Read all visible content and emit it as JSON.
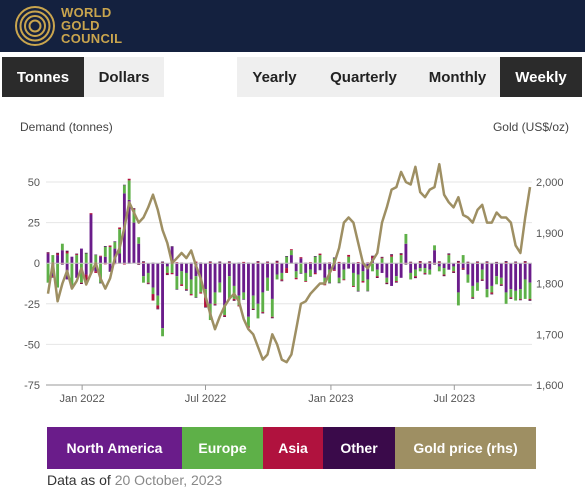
{
  "brand": {
    "line1": "WORLD",
    "line2": "GOLD",
    "line3": "COUNCIL",
    "logo_color": "#c9a54e",
    "header_bg": "#14213f"
  },
  "units_toggle": {
    "tonnes": "Tonnes",
    "dollars": "Dollars",
    "selected": "Tonnes"
  },
  "period_toggle": {
    "yearly": "Yearly",
    "quarterly": "Quarterly",
    "monthly": "Monthly",
    "weekly": "Weekly",
    "selected": "Weekly"
  },
  "axes": {
    "left_title": "Demand (tonnes)",
    "right_title": "Gold (US$/oz)"
  },
  "legend": [
    {
      "label": "North America",
      "color": "#6a1c8a"
    },
    {
      "label": "Europe",
      "color": "#5eb048"
    },
    {
      "label": "Asia",
      "color": "#b0123e"
    },
    {
      "label": "Other",
      "color": "#3a0a4a"
    },
    {
      "label": "Gold price (rhs)",
      "color": "#9e8f63"
    }
  ],
  "footer": {
    "prefix": "Data as of",
    "date": "20 October, 2023"
  },
  "chart_data": {
    "type": "bar",
    "stacked": true,
    "x": [
      "2021-11-12",
      "2021-11-19",
      "2021-11-26",
      "2021-12-03",
      "2021-12-10",
      "2021-12-17",
      "2021-12-24",
      "2021-12-31",
      "2022-01-07",
      "2022-01-14",
      "2022-01-21",
      "2022-01-28",
      "2022-02-04",
      "2022-02-11",
      "2022-02-18",
      "2022-02-25",
      "2022-03-04",
      "2022-03-11",
      "2022-03-18",
      "2022-03-25",
      "2022-04-01",
      "2022-04-08",
      "2022-04-15",
      "2022-04-22",
      "2022-04-29",
      "2022-05-06",
      "2022-05-13",
      "2022-05-20",
      "2022-05-27",
      "2022-06-03",
      "2022-06-10",
      "2022-06-17",
      "2022-06-24",
      "2022-07-01",
      "2022-07-08",
      "2022-07-15",
      "2022-07-22",
      "2022-07-29",
      "2022-08-05",
      "2022-08-12",
      "2022-08-19",
      "2022-08-26",
      "2022-09-02",
      "2022-09-09",
      "2022-09-16",
      "2022-09-23",
      "2022-09-30",
      "2022-10-07",
      "2022-10-14",
      "2022-10-21",
      "2022-10-28",
      "2022-11-04",
      "2022-11-11",
      "2022-11-18",
      "2022-11-25",
      "2022-12-02",
      "2022-12-09",
      "2022-12-16",
      "2022-12-23",
      "2022-12-30",
      "2023-01-06",
      "2023-01-13",
      "2023-01-20",
      "2023-01-27",
      "2023-02-03",
      "2023-02-10",
      "2023-02-17",
      "2023-02-24",
      "2023-03-03",
      "2023-03-10",
      "2023-03-17",
      "2023-03-24",
      "2023-03-31",
      "2023-04-07",
      "2023-04-14",
      "2023-04-21",
      "2023-04-28",
      "2023-05-05",
      "2023-05-12",
      "2023-05-19",
      "2023-05-26",
      "2023-06-02",
      "2023-06-09",
      "2023-06-16",
      "2023-06-23",
      "2023-06-30",
      "2023-07-07",
      "2023-07-14",
      "2023-07-21",
      "2023-07-28",
      "2023-08-04",
      "2023-08-11",
      "2023-08-18",
      "2023-08-25",
      "2023-09-01",
      "2023-09-08",
      "2023-09-15",
      "2023-09-22",
      "2023-09-29",
      "2023-10-06",
      "2023-10-13",
      "2023-10-20"
    ],
    "x_ticks": [
      "Jan 2022",
      "Jul 2022",
      "Jan 2023",
      "Jul 2023"
    ],
    "y_left": {
      "label": "Demand (tonnes)",
      "min": -75,
      "max": 50,
      "ticks": [
        50,
        25,
        0,
        -25,
        -50,
        -75
      ]
    },
    "y_right": {
      "label": "Gold (US$/oz)",
      "min": 1600,
      "max": 2000,
      "ticks": [
        2000,
        1900,
        1800,
        1700,
        1600
      ]
    },
    "series": [
      {
        "name": "North America",
        "color": "#6a1c8a",
        "values": [
          6,
          -8,
          5,
          8,
          -10,
          4,
          -9,
          9,
          -7,
          30,
          -5,
          4,
          4,
          -5,
          9,
          6,
          43,
          39,
          25,
          12,
          -8,
          -6,
          -15,
          -20,
          -40,
          -2,
          10,
          -8,
          -5,
          -6,
          -10,
          -8,
          -10,
          -16,
          -25,
          -18,
          -12,
          -26,
          -8,
          -14,
          -20,
          -18,
          -33,
          -20,
          -25,
          -18,
          -9,
          -22,
          -7,
          -6,
          -3,
          5,
          -5,
          3,
          -6,
          -4,
          -6,
          -4,
          -9,
          -4,
          -4,
          -9,
          -4,
          -3,
          -6,
          -7,
          -5,
          -10,
          3,
          -4,
          -6,
          -9,
          -14,
          -8,
          -9,
          12,
          -6,
          -4,
          -3,
          -3,
          -4,
          8,
          -2,
          -3,
          -4,
          -2,
          -18,
          -3,
          -7,
          -14,
          -12,
          -4,
          -16,
          -14,
          -8,
          -9,
          -18,
          -16,
          -17,
          -16,
          -10,
          -12
        ]
      },
      {
        "name": "Europe",
        "color": "#5eb048",
        "values": [
          -12,
          5,
          -15,
          4,
          6,
          -14,
          5,
          -12,
          6,
          -6,
          5,
          -12,
          6,
          10,
          4,
          15,
          5,
          12,
          8,
          4,
          -4,
          -6,
          -4,
          -6,
          -5,
          -4,
          -6,
          -8,
          -8,
          -10,
          -9,
          -13,
          -8,
          -5,
          -10,
          -7,
          -6,
          -6,
          -14,
          -8,
          -6,
          -4,
          -6,
          -8,
          -9,
          -12,
          -8,
          -11,
          -3,
          -4,
          4,
          3,
          -4,
          -6,
          -5,
          -4,
          4,
          5,
          -4,
          -8,
          3,
          -3,
          -6,
          4,
          -8,
          -10,
          -6,
          -7,
          -5,
          -4,
          3,
          -3,
          4,
          -3,
          5,
          6,
          -4,
          -4,
          -2,
          -3,
          -3,
          3,
          -3,
          -4,
          5,
          -3,
          -8,
          5,
          -5,
          -7,
          -5,
          -6,
          -5,
          -4,
          -5,
          -4,
          -7,
          -5,
          -6,
          -6,
          -12,
          -10
        ]
      },
      {
        "name": "Asia",
        "color": "#b0123e",
        "values": [
          0.5,
          -0.6,
          1,
          -0.5,
          1.2,
          -0.8,
          0.6,
          -0.5,
          -4,
          0.8,
          -1,
          0.6,
          -0.7,
          0.9,
          -0.6,
          1,
          -0.8,
          1,
          0.6,
          -0.7,
          0.8,
          -0.6,
          -4,
          -2,
          0.5,
          -1,
          -0.8,
          0.6,
          -1,
          -0.5,
          -0.8,
          1,
          -0.7,
          -6,
          0.8,
          -0.6,
          0.5,
          -0.8,
          0.7,
          -0.9,
          -0.6,
          0.8,
          -0.7,
          -0.5,
          0.9,
          -0.6,
          0.7,
          -0.5,
          1,
          -0.8,
          -3,
          0.6,
          -0.9,
          0.7,
          -0.5,
          0.6,
          -0.8,
          0.9,
          -0.6,
          0.5,
          -0.7,
          0.8,
          -0.5,
          1.1,
          -0.6,
          0.7,
          -0.9,
          0.5,
          1.2,
          -0.8,
          0.6,
          -0.5,
          1,
          -0.7,
          0.8,
          -0.5,
          0.6,
          -0.8,
          1,
          -0.6,
          0.7,
          -0.5,
          0.9,
          -0.6,
          0.5,
          -0.7,
          1,
          -0.8,
          0.6,
          -0.5,
          0.8,
          -0.6,
          0.7,
          -0.9,
          0.5,
          -0.6,
          0.8,
          -0.7,
          0.6,
          -0.5,
          1,
          -0.8
        ]
      },
      {
        "name": "Other",
        "color": "#3a0a4a",
        "values": [
          0.3,
          -0.3,
          0.4,
          -0.3,
          0.5,
          -0.4,
          0.3,
          -0.3,
          0.4,
          -0.3,
          0.3,
          -0.4,
          0.5,
          -0.3,
          0.4,
          -0.3,
          0.3,
          -0.4,
          0.3,
          -0.3,
          0.4,
          -0.3,
          0.3,
          -0.4,
          0.5,
          -0.3,
          0.4,
          -0.3,
          0.3,
          -0.4,
          0.3,
          -0.3,
          0.4,
          -0.3,
          0.3,
          -0.4,
          0.5,
          -0.3,
          0.4,
          -0.3,
          0.3,
          -0.4,
          0.3,
          -0.3,
          0.4,
          -0.3,
          0.3,
          -0.4,
          0.5,
          -0.3,
          0.4,
          -0.3,
          0.3,
          -0.4,
          0.3,
          -0.3,
          0.4,
          -0.3,
          0.3,
          -0.4,
          0.5,
          -0.3,
          0.4,
          -0.3,
          0.3,
          -0.4,
          0.3,
          -0.3,
          0.4,
          -0.3,
          0.3,
          -0.4,
          0.5,
          -0.3,
          0.4,
          -0.3,
          0.3,
          -0.4,
          0.3,
          -0.3,
          0.4,
          -0.3,
          0.3,
          -0.4,
          0.5,
          -0.3,
          0.4,
          -0.3,
          0.3,
          -0.4,
          0.3,
          -0.3,
          0.4,
          -0.3,
          0.3,
          -0.4,
          0.5,
          -0.3,
          0.4,
          -0.3,
          0.3,
          -0.4
        ]
      },
      {
        "name": "Gold price (rhs)",
        "color": "#9e8f63",
        "axis": "right",
        "values": [
          1780,
          1840,
          1765,
          1800,
          1825,
          1790,
          1805,
          1830,
          1798,
          1820,
          1840,
          1810,
          1790,
          1810,
          1850,
          1870,
          1910,
          1960,
          1940,
          1920,
          1930,
          1950,
          1975,
          1945,
          1905,
          1880,
          1840,
          1850,
          1860,
          1850,
          1865,
          1835,
          1810,
          1775,
          1740,
          1710,
          1735,
          1755,
          1770,
          1780,
          1765,
          1730,
          1710,
          1700,
          1675,
          1650,
          1660,
          1700,
          1680,
          1650,
          1645,
          1660,
          1710,
          1760,
          1765,
          1780,
          1790,
          1800,
          1800,
          1820,
          1840,
          1870,
          1920,
          1930,
          1920,
          1880,
          1840,
          1830,
          1845,
          1860,
          1920,
          1950,
          1985,
          1990,
          2020,
          2000,
          1995,
          2030,
          1980,
          1970,
          1985,
          1990,
          2035,
          1975,
          1960,
          1950,
          1970,
          1935,
          1930,
          1920,
          1945,
          1955,
          1920,
          1920,
          1940,
          1930,
          1930,
          1920,
          1875,
          1860,
          1930,
          1990
        ]
      }
    ]
  }
}
